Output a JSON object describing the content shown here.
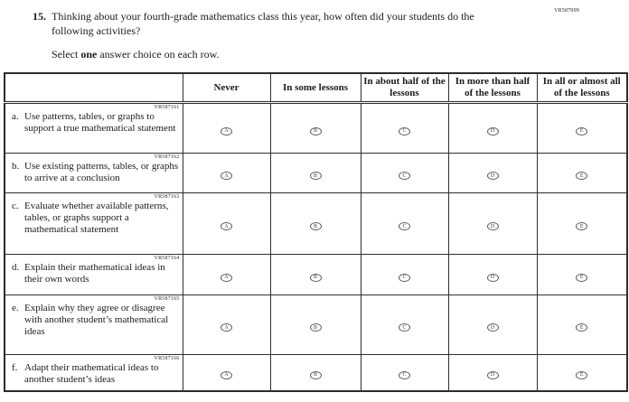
{
  "page": {
    "form_code": "VR587099",
    "question_number": "15.",
    "question_text": "Thinking about your fourth-grade mathematics class this year, how often did your students do the following activities?",
    "instruction_prefix": "Select ",
    "instruction_bold": "one",
    "instruction_suffix": " answer choice on each row."
  },
  "table": {
    "columns": [
      "Never",
      "In some lessons",
      "In about half of the lessons",
      "In more than half of the lessons",
      "In all or almost all of the lessons"
    ],
    "option_letters": [
      "A",
      "B",
      "C",
      "D",
      "E"
    ],
    "rows": [
      {
        "code": "VR587161",
        "letter": "a.",
        "text": "Use patterns, tables, or graphs to support a true mathematical statement"
      },
      {
        "code": "VR587162",
        "letter": "b.",
        "text": "Use existing patterns, tables, or graphs to arrive at a conclusion"
      },
      {
        "code": "VR587163",
        "letter": "c.",
        "text": "Evaluate whether available patterns, tables, or graphs support a mathematical statement"
      },
      {
        "code": "VR587164",
        "letter": "d.",
        "text": "Explain their mathematical ideas in their own words"
      },
      {
        "code": "VR587165",
        "letter": "e.",
        "text": "Explain why they agree or disagree with another student’s mathematical ideas"
      },
      {
        "code": "VR587166",
        "letter": "f.",
        "text": "Adapt their mathematical ideas to another student’s ideas"
      }
    ]
  }
}
